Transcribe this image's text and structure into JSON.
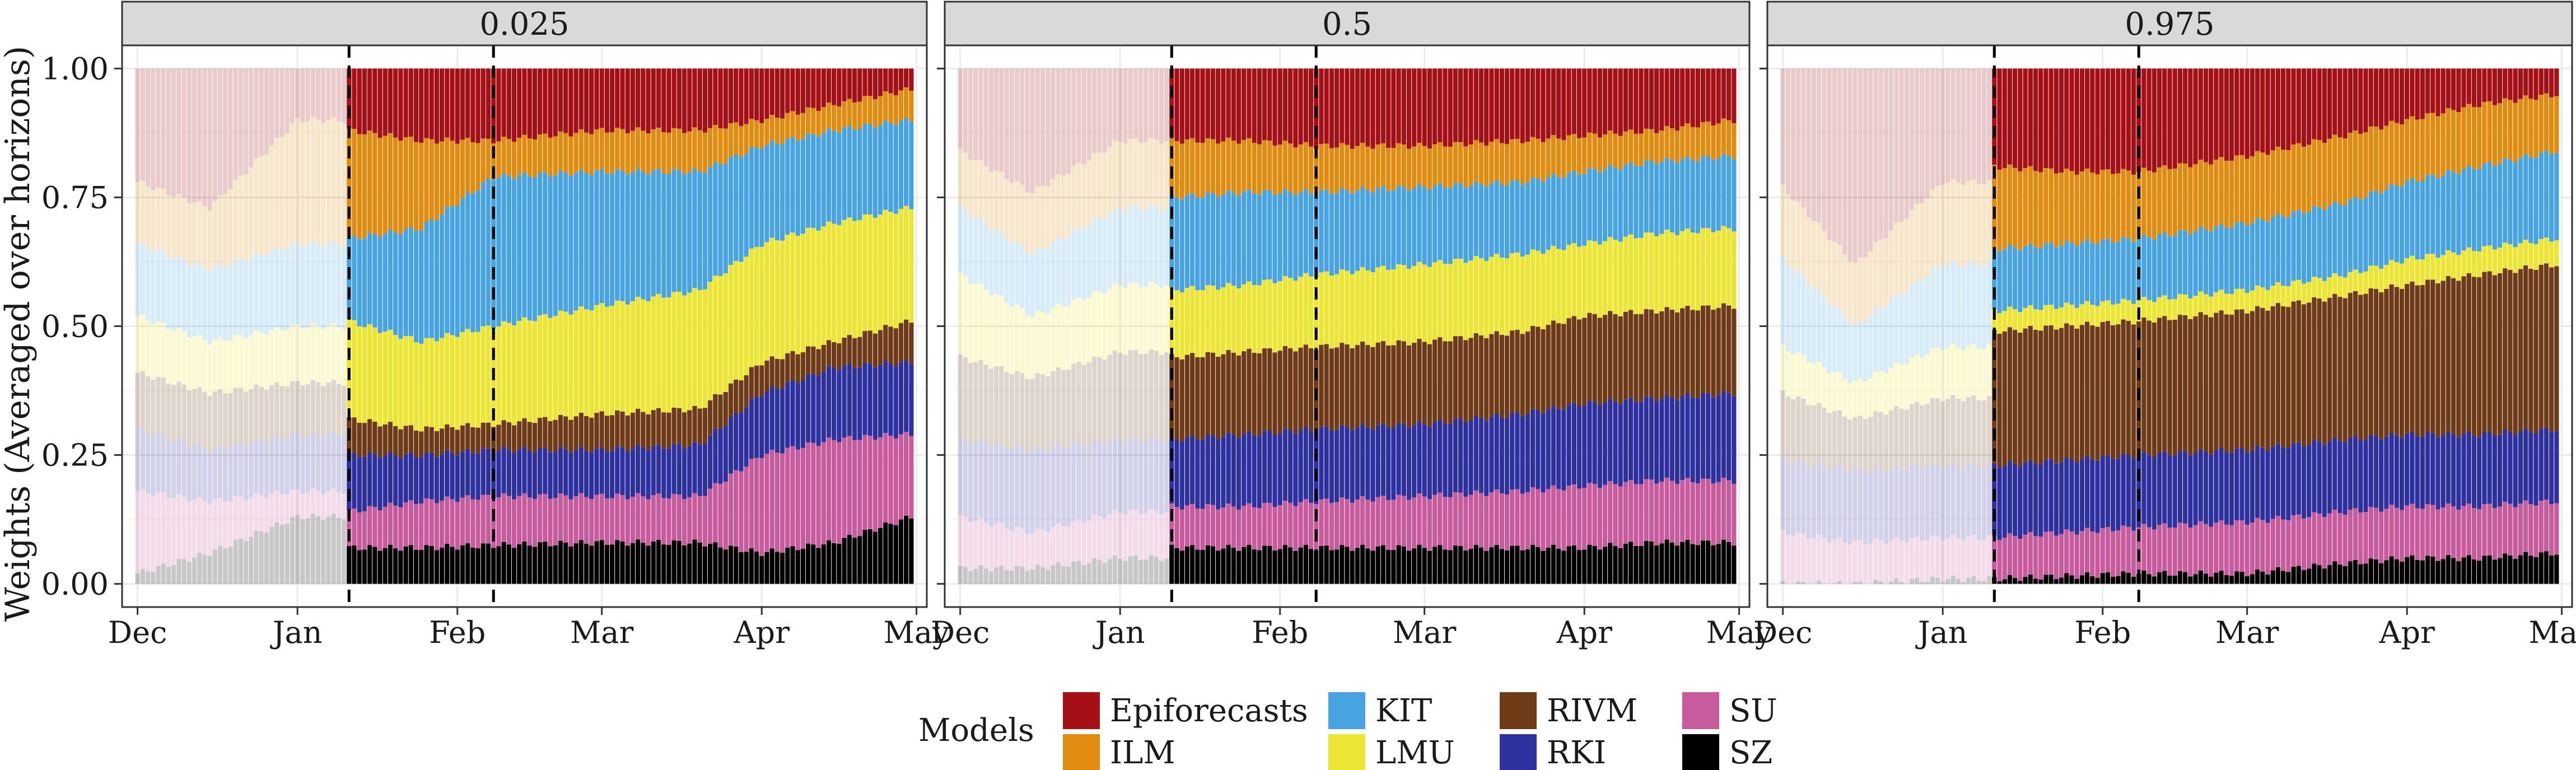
{
  "chart_data": {
    "type": "bar",
    "stacking": "normalized stacked bars, one bar per forecast date, faceted by quantile",
    "ylabel": "Weights (Averaged over horizons)",
    "xlabel": "",
    "ylim": [
      0,
      1
    ],
    "y_ticks": [
      "0.00",
      "0.25",
      "0.50",
      "0.75",
      "1.00"
    ],
    "x_ticks": [
      "Dec",
      "Jan",
      "Feb",
      "Mar",
      "Apr",
      "May"
    ],
    "x_range": [
      "2020-11-28",
      "2021-05-03"
    ],
    "bar_dates": {
      "start": "2020-12-01",
      "end": "2021-04-30",
      "step_days": 1
    },
    "highlight_start": "2021-01-11",
    "vertical_dashed_lines": [
      "2021-01-11",
      "2021-02-08"
    ],
    "grid": true,
    "legend": {
      "title": "Models",
      "position": "bottom",
      "items": [
        {
          "name": "Epiforecasts",
          "color": "#a50f15"
        },
        {
          "name": "ILM",
          "color": "#e08c10"
        },
        {
          "name": "KIT",
          "color": "#48a4e1"
        },
        {
          "name": "LMU",
          "color": "#ede534"
        },
        {
          "name": "RIVM",
          "color": "#6e3b16"
        },
        {
          "name": "RKI",
          "color": "#2e30a0"
        },
        {
          "name": "SU",
          "color": "#c75b9b"
        },
        {
          "name": "SZ",
          "color": "#000000"
        }
      ]
    },
    "stack_order": [
      "SZ",
      "SU",
      "RKI",
      "RIVM",
      "LMU",
      "KIT",
      "ILM",
      "Epiforecasts"
    ],
    "panels": [
      {
        "title": "0.025",
        "knot_dates": [
          "2020-12-01",
          "2020-12-15",
          "2021-01-01",
          "2021-01-10",
          "2021-01-11",
          "2021-01-25",
          "2021-02-08",
          "2021-03-01",
          "2021-03-20",
          "2021-04-01",
          "2021-04-15",
          "2021-04-30"
        ],
        "cumulative_tops": {
          "SZ": [
            0.02,
            0.06,
            0.13,
            0.13,
            0.07,
            0.07,
            0.075,
            0.08,
            0.08,
            0.06,
            0.08,
            0.13
          ],
          "SU": [
            0.18,
            0.16,
            0.18,
            0.18,
            0.14,
            0.16,
            0.17,
            0.17,
            0.17,
            0.25,
            0.28,
            0.29
          ],
          "RKI": [
            0.3,
            0.26,
            0.29,
            0.29,
            0.25,
            0.25,
            0.26,
            0.26,
            0.27,
            0.37,
            0.42,
            0.43
          ],
          "RIVM": [
            0.41,
            0.37,
            0.39,
            0.39,
            0.32,
            0.3,
            0.31,
            0.33,
            0.34,
            0.43,
            0.47,
            0.51
          ],
          "LMU": [
            0.52,
            0.47,
            0.5,
            0.5,
            0.51,
            0.47,
            0.5,
            0.54,
            0.57,
            0.66,
            0.7,
            0.73
          ],
          "KIT": [
            0.66,
            0.61,
            0.66,
            0.66,
            0.67,
            0.69,
            0.79,
            0.8,
            0.8,
            0.85,
            0.88,
            0.9
          ],
          "ILM": [
            0.78,
            0.73,
            0.9,
            0.9,
            0.88,
            0.86,
            0.86,
            0.88,
            0.88,
            0.9,
            0.93,
            0.96
          ],
          "Epiforecasts": [
            1,
            1,
            1,
            1,
            1,
            1,
            1,
            1,
            1,
            1,
            1,
            1
          ]
        }
      },
      {
        "title": "0.5",
        "knot_dates": [
          "2020-12-01",
          "2020-12-15",
          "2021-01-01",
          "2021-01-10",
          "2021-01-11",
          "2021-01-25",
          "2021-02-08",
          "2021-03-01",
          "2021-03-20",
          "2021-04-01",
          "2021-04-15",
          "2021-04-30"
        ],
        "cumulative_tops": {
          "SZ": [
            0.03,
            0.03,
            0.05,
            0.05,
            0.07,
            0.07,
            0.07,
            0.07,
            0.07,
            0.07,
            0.08,
            0.08
          ],
          "SU": [
            0.13,
            0.1,
            0.14,
            0.14,
            0.15,
            0.15,
            0.16,
            0.17,
            0.18,
            0.19,
            0.2,
            0.2
          ],
          "RKI": [
            0.28,
            0.26,
            0.28,
            0.28,
            0.28,
            0.29,
            0.3,
            0.31,
            0.33,
            0.35,
            0.36,
            0.37
          ],
          "RIVM": [
            0.44,
            0.4,
            0.45,
            0.45,
            0.44,
            0.45,
            0.46,
            0.47,
            0.49,
            0.52,
            0.53,
            0.54
          ],
          "LMU": [
            0.6,
            0.52,
            0.58,
            0.58,
            0.57,
            0.58,
            0.6,
            0.62,
            0.64,
            0.66,
            0.68,
            0.69
          ],
          "KIT": [
            0.73,
            0.64,
            0.73,
            0.73,
            0.75,
            0.76,
            0.76,
            0.77,
            0.78,
            0.8,
            0.82,
            0.83
          ],
          "ILM": [
            0.84,
            0.76,
            0.86,
            0.86,
            0.86,
            0.86,
            0.85,
            0.85,
            0.86,
            0.87,
            0.88,
            0.9
          ],
          "Epiforecasts": [
            1,
            1,
            1,
            1,
            1,
            1,
            1,
            1,
            1,
            1,
            1,
            1
          ]
        }
      },
      {
        "title": "0.975",
        "knot_dates": [
          "2020-12-01",
          "2020-12-15",
          "2021-01-01",
          "2021-01-10",
          "2021-01-11",
          "2021-01-25",
          "2021-02-08",
          "2021-03-01",
          "2021-03-20",
          "2021-04-01",
          "2021-04-15",
          "2021-04-30"
        ],
        "cumulative_tops": {
          "SZ": [
            0.0,
            0.0,
            0.01,
            0.01,
            0.01,
            0.015,
            0.02,
            0.02,
            0.04,
            0.05,
            0.05,
            0.06
          ],
          "SU": [
            0.1,
            0.08,
            0.09,
            0.09,
            0.09,
            0.1,
            0.11,
            0.12,
            0.14,
            0.15,
            0.15,
            0.16
          ],
          "RKI": [
            0.24,
            0.22,
            0.23,
            0.23,
            0.23,
            0.24,
            0.25,
            0.26,
            0.28,
            0.29,
            0.29,
            0.3
          ],
          "RIVM": [
            0.37,
            0.32,
            0.36,
            0.36,
            0.49,
            0.5,
            0.51,
            0.53,
            0.56,
            0.58,
            0.6,
            0.62
          ],
          "LMU": [
            0.46,
            0.39,
            0.46,
            0.46,
            0.53,
            0.54,
            0.55,
            0.57,
            0.6,
            0.63,
            0.65,
            0.67
          ],
          "KIT": [
            0.63,
            0.5,
            0.62,
            0.62,
            0.65,
            0.66,
            0.67,
            0.7,
            0.74,
            0.78,
            0.81,
            0.84
          ],
          "ILM": [
            0.77,
            0.62,
            0.78,
            0.78,
            0.81,
            0.8,
            0.8,
            0.83,
            0.87,
            0.9,
            0.93,
            0.95
          ],
          "Epiforecasts": [
            1,
            1,
            1,
            1,
            1,
            1,
            1,
            1,
            1,
            1,
            1,
            1
          ]
        }
      }
    ]
  }
}
